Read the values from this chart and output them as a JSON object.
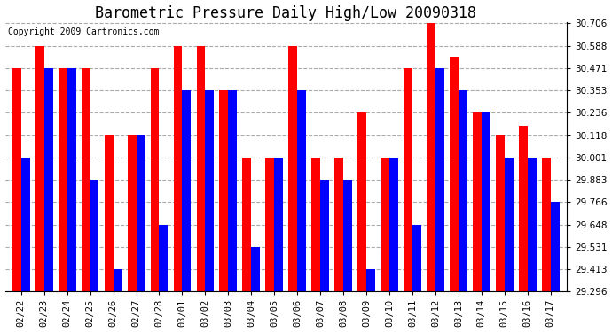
{
  "title": "Barometric Pressure Daily High/Low 20090318",
  "copyright": "Copyright 2009 Cartronics.com",
  "dates": [
    "02/22",
    "02/23",
    "02/24",
    "02/25",
    "02/26",
    "02/27",
    "02/28",
    "03/01",
    "03/02",
    "03/03",
    "03/04",
    "03/05",
    "03/06",
    "03/07",
    "03/08",
    "03/09",
    "03/10",
    "03/11",
    "03/12",
    "03/13",
    "03/14",
    "03/15",
    "03/16",
    "03/17"
  ],
  "highs": [
    30.471,
    30.588,
    30.471,
    30.471,
    30.118,
    30.118,
    30.471,
    30.588,
    30.588,
    30.353,
    30.001,
    30.001,
    30.588,
    30.001,
    30.001,
    30.236,
    30.001,
    30.471,
    30.706,
    30.53,
    30.236,
    30.118,
    30.165,
    30.001
  ],
  "lows": [
    30.001,
    30.471,
    30.471,
    29.883,
    29.413,
    30.118,
    29.648,
    30.353,
    30.353,
    30.353,
    29.531,
    30.001,
    30.353,
    29.883,
    29.883,
    29.413,
    30.001,
    29.648,
    30.471,
    30.353,
    30.236,
    30.001,
    30.001,
    29.766
  ],
  "yticks": [
    29.296,
    29.413,
    29.531,
    29.648,
    29.766,
    29.883,
    30.001,
    30.118,
    30.236,
    30.353,
    30.471,
    30.588,
    30.706
  ],
  "ymin": 29.296,
  "ymax": 30.706,
  "bar_width": 0.38,
  "high_color": "#ff0000",
  "low_color": "#0000ff",
  "bg_color": "#ffffff",
  "grid_color": "#aaaaaa",
  "title_fontsize": 12,
  "tick_fontsize": 7.5,
  "copyright_fontsize": 7
}
